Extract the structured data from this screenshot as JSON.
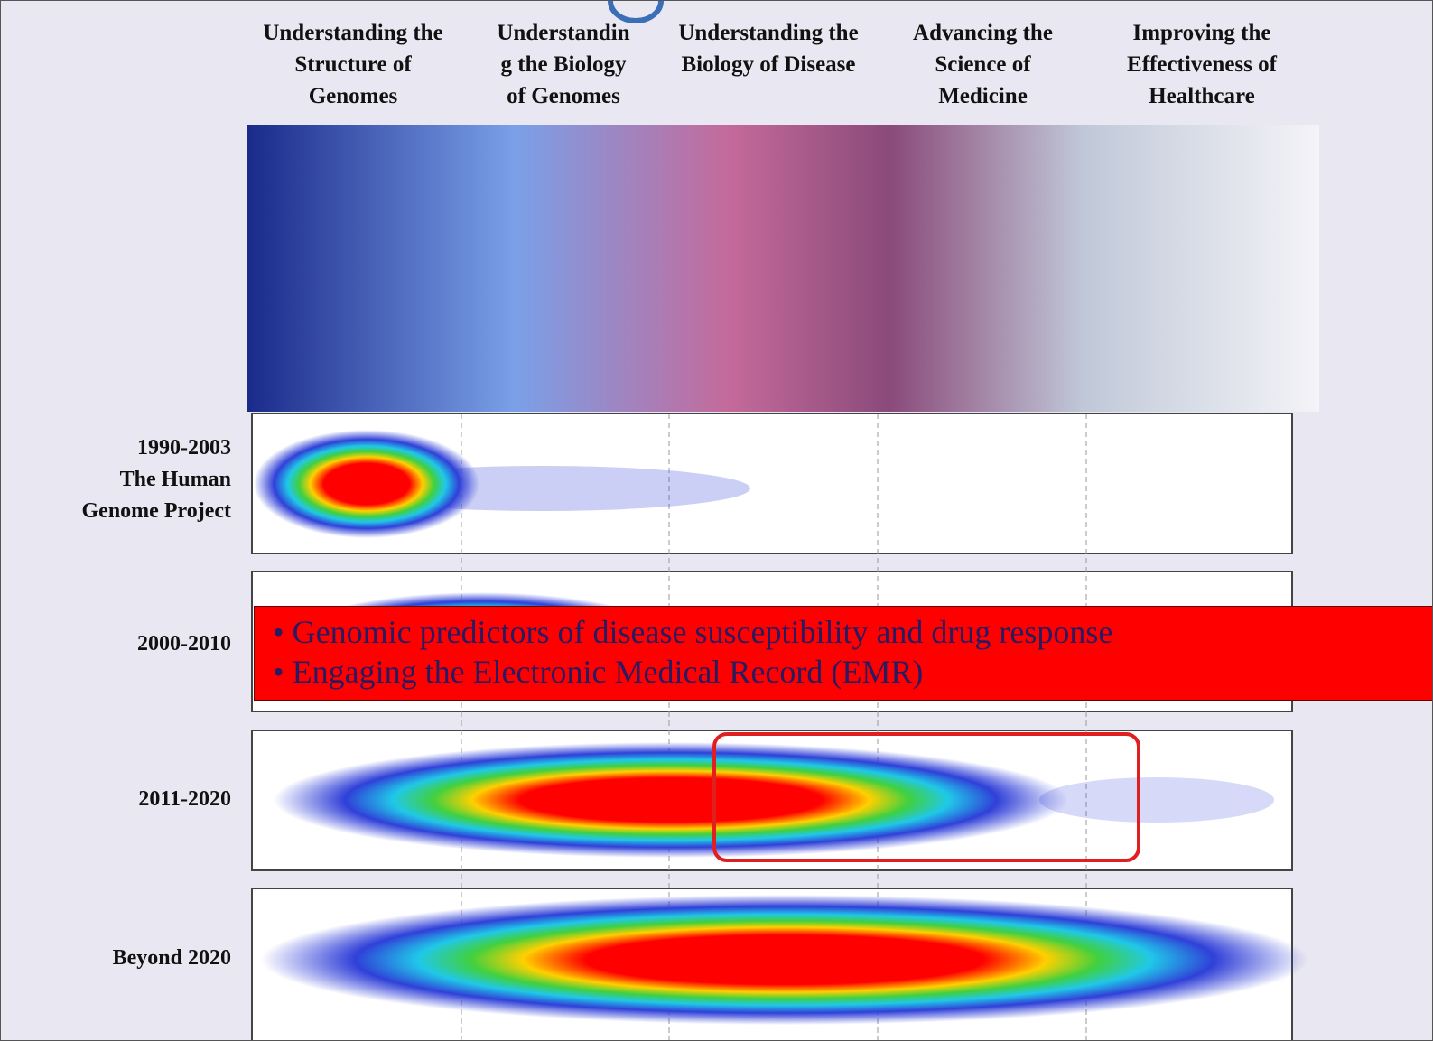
{
  "columns": [
    "Understanding the Structure of Genomes",
    "Understanding the Biology of Genomes",
    "Understanding the Biology of Disease",
    "Advancing the Science of Medicine",
    "Improving the Effectiveness of Healthcare"
  ],
  "rows": [
    {
      "period": "1990-2003",
      "name": "The Human Genome Project"
    },
    {
      "period": "2000-2010"
    },
    {
      "period": "2011-2020"
    },
    {
      "period": "Beyond 2020"
    }
  ],
  "callout": {
    "bullets": [
      "Genomic predictors of disease susceptibility and drug response",
      "Engaging the Electronic Medical Record (EMR)"
    ]
  }
}
